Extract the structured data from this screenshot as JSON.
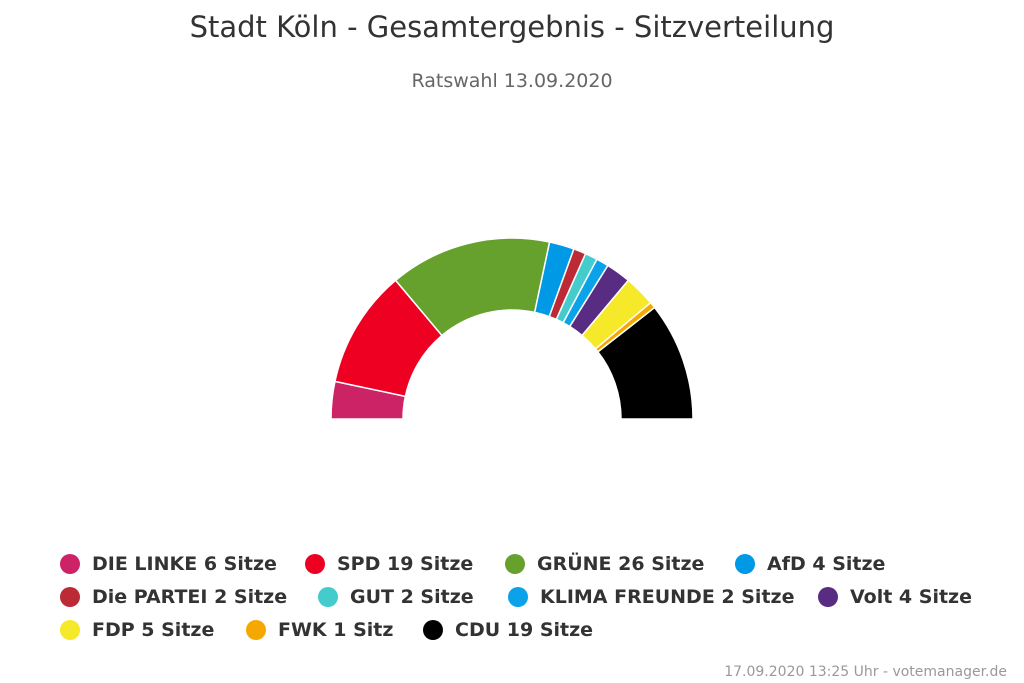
{
  "title": "Stadt Köln - Gesamtergebnis - Sitzverteilung",
  "subtitle": "Ratswahl 13.09.2020",
  "credits": "17.09.2020 13:25 Uhr - votemanager.de",
  "chart_data": {
    "type": "pie",
    "variant": "semicircle-parliament",
    "title": "Stadt Köln - Gesamtergebnis - Sitzverteilung",
    "subtitle": "Ratswahl 13.09.2020",
    "total_seats": 90,
    "series": [
      {
        "name": "DIE LINKE",
        "value": 6,
        "unit": "Sitze",
        "label": "DIE LINKE 6 Sitze",
        "color": "#cc2266"
      },
      {
        "name": "SPD",
        "value": 19,
        "unit": "Sitze",
        "label": "SPD 19 Sitze",
        "color": "#ee0022"
      },
      {
        "name": "GRÜNE",
        "value": 26,
        "unit": "Sitze",
        "label": "GRÜNE 26 Sitze",
        "color": "#66a02d"
      },
      {
        "name": "AfD",
        "value": 4,
        "unit": "Sitze",
        "label": "AfD 4 Sitze",
        "color": "#0099e6"
      },
      {
        "name": "Die PARTEI",
        "value": 2,
        "unit": "Sitze",
        "label": "Die PARTEI 2 Sitze",
        "color": "#bb2a35"
      },
      {
        "name": "GUT",
        "value": 2,
        "unit": "Sitze",
        "label": "GUT 2 Sitze",
        "color": "#44cccc"
      },
      {
        "name": "KLIMA FREUNDE",
        "value": 2,
        "unit": "Sitze",
        "label": "KLIMA FREUNDE 2 Sitze",
        "color": "#0aa2e8"
      },
      {
        "name": "Volt",
        "value": 4,
        "unit": "Sitze",
        "label": "Volt 4 Sitze",
        "color": "#582c83"
      },
      {
        "name": "FDP",
        "value": 5,
        "unit": "Sitze",
        "label": "FDP 5 Sitze",
        "color": "#f5e92a"
      },
      {
        "name": "FWK",
        "value": 1,
        "unit": "Sitz",
        "label": "FWK 1 Sitz",
        "color": "#f5a800"
      },
      {
        "name": "CDU",
        "value": 19,
        "unit": "Sitze",
        "label": "CDU 19 Sitze",
        "color": "#000000"
      }
    ],
    "legend_position": "bottom"
  }
}
